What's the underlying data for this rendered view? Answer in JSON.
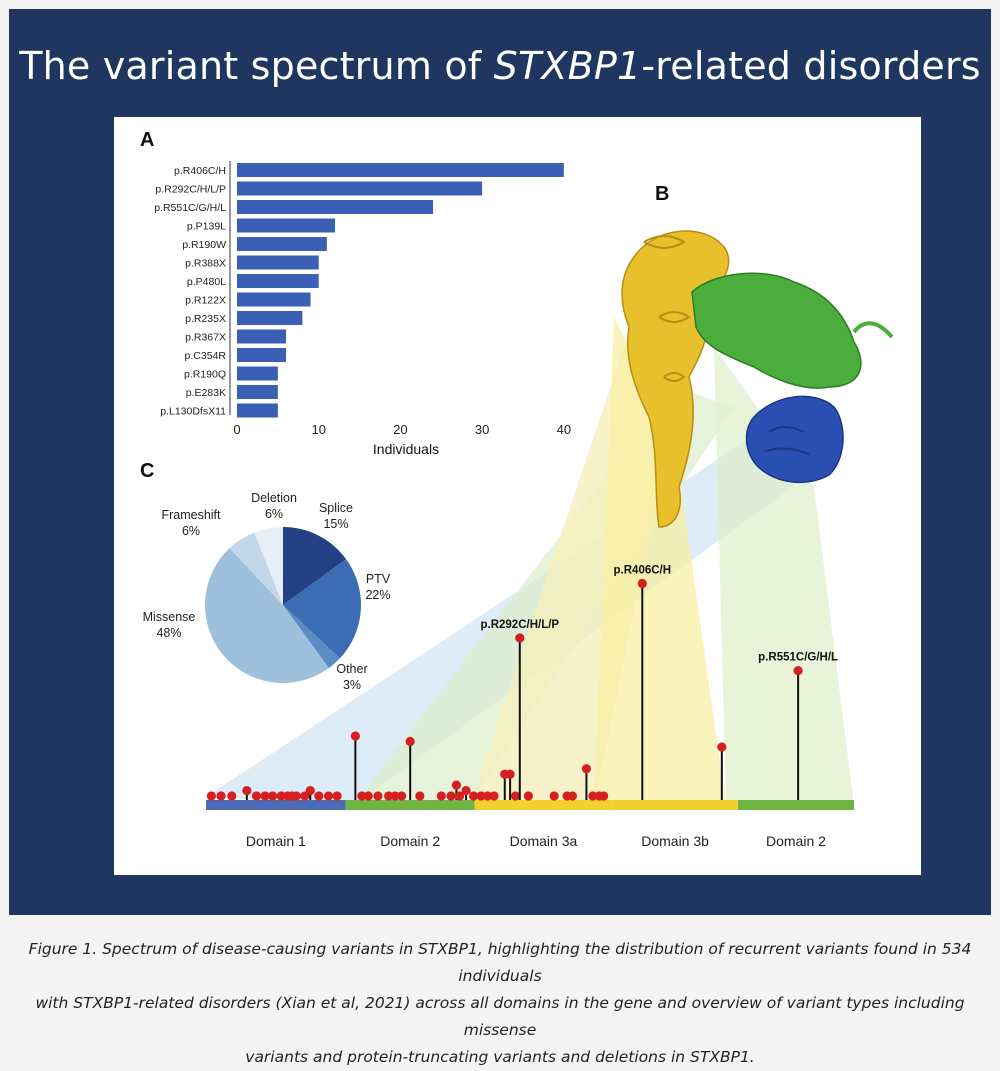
{
  "title_prefix": "The variant spectrum of ",
  "title_gene": "STXBP1",
  "title_suffix": "-related disorders",
  "panels": {
    "a": "A",
    "b": "B",
    "c": "C"
  },
  "colors": {
    "frame": "#1f3660",
    "bar": "#3a5fb4",
    "lollipop": "#d62020"
  },
  "chart_data": [
    {
      "type": "bar",
      "orientation": "horizontal",
      "categories": [
        "p.R406C/H",
        "p.R292C/H/L/P",
        "p.R551C/G/H/L",
        "p.P139L",
        "p.R190W",
        "p.R388X",
        "p.P480L",
        "p.R122X",
        "p.R235X",
        "p.R367X",
        "p.C354R",
        "p.R190Q",
        "p.E283K",
        "p.L130DfsX11"
      ],
      "values": [
        40,
        30,
        24,
        12,
        11,
        10,
        10,
        9,
        8,
        6,
        6,
        5,
        5,
        5
      ],
      "xlabel": "Individuals",
      "xticks": [
        0,
        10,
        20,
        30,
        40
      ],
      "xlim": [
        0,
        41
      ]
    },
    {
      "type": "pie",
      "slices": [
        {
          "label": "Splice",
          "pct": "15%",
          "value": 15,
          "color": "#233f85"
        },
        {
          "label": "PTV",
          "pct": "22%",
          "value": 22,
          "color": "#3a6db4"
        },
        {
          "label": "Other",
          "pct": "3%",
          "value": 3,
          "color": "#5c8cc4"
        },
        {
          "label": "Missense",
          "pct": "48%",
          "value": 48,
          "color": "#9ec0dc"
        },
        {
          "label": "Frameshift",
          "pct": "6%",
          "value": 6,
          "color": "#c2d6ea"
        },
        {
          "label": "Deletion",
          "pct": "6%",
          "value": 6,
          "color": "#e8eef6"
        }
      ]
    },
    {
      "type": "lollipop",
      "xlim": [
        0,
        603
      ],
      "domains": [
        {
          "name": "Domain 1",
          "start": 0,
          "end": 130,
          "color": "#4d6ab5"
        },
        {
          "name": "Domain 2",
          "start": 130,
          "end": 250,
          "color": "#6fb344"
        },
        {
          "name": "Domain 3a",
          "start": 250,
          "end": 378,
          "color": "#f2d12e"
        },
        {
          "name": "Domain 3b",
          "start": 378,
          "end": 495,
          "color": "#f2d12e"
        },
        {
          "name": "Domain 2",
          "start": 495,
          "end": 603,
          "color": "#6fb344"
        }
      ],
      "labeled": [
        {
          "label": "p.R292C/H/L/P",
          "pos": 292,
          "count": 30
        },
        {
          "label": "p.R406C/H",
          "pos": 406,
          "count": 40
        },
        {
          "label": "p.R551C/G/H/L",
          "pos": 551,
          "count": 24
        }
      ],
      "variants": [
        [
          5,
          1
        ],
        [
          14,
          1
        ],
        [
          24,
          1
        ],
        [
          38,
          2
        ],
        [
          47,
          1
        ],
        [
          55,
          1
        ],
        [
          62,
          1
        ],
        [
          70,
          1
        ],
        [
          76,
          1
        ],
        [
          80,
          1
        ],
        [
          84,
          1
        ],
        [
          92,
          1
        ],
        [
          97,
          2
        ],
        [
          105,
          1
        ],
        [
          114,
          1
        ],
        [
          122,
          1
        ],
        [
          139,
          12
        ],
        [
          145,
          1
        ],
        [
          151,
          1
        ],
        [
          160,
          1
        ],
        [
          170,
          1
        ],
        [
          176,
          1
        ],
        [
          182,
          1
        ],
        [
          190,
          11
        ],
        [
          199,
          1
        ],
        [
          219,
          1
        ],
        [
          228,
          1
        ],
        [
          233,
          3
        ],
        [
          236,
          1
        ],
        [
          242,
          2
        ],
        [
          249,
          1
        ],
        [
          256,
          1
        ],
        [
          262,
          1
        ],
        [
          268,
          1
        ],
        [
          278,
          5
        ],
        [
          283,
          5
        ],
        [
          288,
          1
        ],
        [
          300,
          1
        ],
        [
          324,
          1
        ],
        [
          336,
          1
        ],
        [
          341,
          1
        ],
        [
          354,
          6
        ],
        [
          360,
          1
        ],
        [
          366,
          1
        ],
        [
          370,
          1
        ],
        [
          480,
          10
        ]
      ]
    }
  ],
  "caption": [
    "Figure 1. Spectrum of disease-causing variants in STXBP1, highlighting the distribution of recurrent variants found in 534 individuals",
    "with STXBP1-related disorders (Xian et al, 2021) across all domains in the gene and overview of variant types including missense",
    "variants and protein-truncating variants and deletions in STXBP1."
  ]
}
